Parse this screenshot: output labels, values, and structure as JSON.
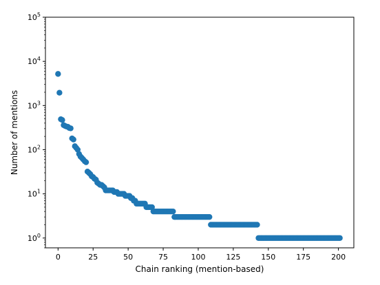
{
  "chart_data": {
    "type": "scatter",
    "title": "",
    "xlabel": "Chain ranking (mention-based)",
    "ylabel": "Number of mentions",
    "x_scale": "linear",
    "y_scale": "log",
    "xlim": [
      -9,
      211
    ],
    "ylim": [
      0.6,
      100000
    ],
    "x_ticks": [
      0,
      25,
      50,
      75,
      100,
      125,
      150,
      175,
      200
    ],
    "y_ticks": [
      1,
      10,
      100,
      1000,
      10000,
      100000
    ],
    "y_tick_labels": [
      {
        "base": "10",
        "exp": "0"
      },
      {
        "base": "10",
        "exp": "1"
      },
      {
        "base": "10",
        "exp": "2"
      },
      {
        "base": "10",
        "exp": "3"
      },
      {
        "base": "10",
        "exp": "4"
      },
      {
        "base": "10",
        "exp": "5"
      }
    ],
    "grid": false,
    "marker_color": "#1f77b4",
    "series": [
      {
        "values": [
          [
            0,
            5200
          ],
          [
            1,
            1950
          ],
          [
            2,
            490
          ],
          [
            3,
            470
          ],
          [
            4,
            360
          ],
          [
            5,
            345
          ],
          [
            6,
            335
          ],
          [
            7,
            330
          ],
          [
            8,
            310
          ],
          [
            9,
            305
          ],
          [
            10,
            180
          ],
          [
            11,
            170
          ],
          [
            12,
            120
          ],
          [
            13,
            110
          ],
          [
            14,
            100
          ],
          [
            15,
            80
          ],
          [
            16,
            70
          ],
          [
            17,
            65
          ],
          [
            18,
            60
          ],
          [
            19,
            55
          ],
          [
            20,
            52
          ],
          [
            21,
            32
          ],
          [
            22,
            30
          ],
          [
            23,
            28
          ],
          [
            24,
            25
          ],
          [
            25,
            24
          ],
          [
            26,
            22
          ],
          [
            27,
            21
          ],
          [
            28,
            18
          ],
          [
            29,
            17
          ],
          [
            30,
            16
          ],
          [
            31,
            16
          ],
          [
            32,
            15
          ],
          [
            33,
            14
          ],
          [
            34,
            12
          ],
          [
            35,
            12
          ],
          [
            36,
            12
          ],
          [
            37,
            12
          ],
          [
            38,
            12
          ],
          [
            39,
            12
          ],
          [
            40,
            11
          ],
          [
            41,
            11
          ],
          [
            42,
            11
          ],
          [
            43,
            10
          ],
          [
            44,
            10
          ],
          [
            45,
            10
          ],
          [
            46,
            10
          ],
          [
            47,
            10
          ],
          [
            48,
            9
          ],
          [
            49,
            9
          ],
          [
            50,
            9
          ],
          [
            51,
            9
          ],
          [
            52,
            8
          ],
          [
            53,
            8
          ],
          [
            54,
            7
          ],
          [
            55,
            7
          ],
          [
            56,
            6
          ],
          [
            57,
            6
          ],
          [
            58,
            6
          ],
          [
            59,
            6
          ],
          [
            60,
            6
          ],
          [
            61,
            6
          ],
          [
            62,
            6
          ],
          [
            63,
            5
          ],
          [
            64,
            5
          ],
          [
            65,
            5
          ],
          [
            66,
            5
          ],
          [
            67,
            5
          ],
          [
            68,
            4
          ],
          [
            69,
            4
          ],
          [
            70,
            4
          ],
          [
            71,
            4
          ],
          [
            72,
            4
          ],
          [
            73,
            4
          ],
          [
            74,
            4
          ],
          [
            75,
            4
          ],
          [
            76,
            4
          ],
          [
            77,
            4
          ],
          [
            78,
            4
          ],
          [
            79,
            4
          ],
          [
            80,
            4
          ],
          [
            81,
            4
          ],
          [
            82,
            4
          ],
          [
            83,
            3
          ],
          [
            84,
            3
          ],
          [
            85,
            3
          ],
          [
            86,
            3
          ],
          [
            87,
            3
          ],
          [
            88,
            3
          ],
          [
            89,
            3
          ],
          [
            90,
            3
          ],
          [
            91,
            3
          ],
          [
            92,
            3
          ],
          [
            93,
            3
          ],
          [
            94,
            3
          ],
          [
            95,
            3
          ],
          [
            96,
            3
          ],
          [
            97,
            3
          ],
          [
            98,
            3
          ],
          [
            99,
            3
          ],
          [
            100,
            3
          ],
          [
            101,
            3
          ],
          [
            102,
            3
          ],
          [
            103,
            3
          ],
          [
            104,
            3
          ],
          [
            105,
            3
          ],
          [
            106,
            3
          ],
          [
            107,
            3
          ],
          [
            108,
            3
          ],
          [
            109,
            2
          ],
          [
            110,
            2
          ],
          [
            111,
            2
          ],
          [
            112,
            2
          ],
          [
            113,
            2
          ],
          [
            114,
            2
          ],
          [
            115,
            2
          ],
          [
            116,
            2
          ],
          [
            117,
            2
          ],
          [
            118,
            2
          ],
          [
            119,
            2
          ],
          [
            120,
            2
          ],
          [
            121,
            2
          ],
          [
            122,
            2
          ],
          [
            123,
            2
          ],
          [
            124,
            2
          ],
          [
            125,
            2
          ],
          [
            126,
            2
          ],
          [
            127,
            2
          ],
          [
            128,
            2
          ],
          [
            129,
            2
          ],
          [
            130,
            2
          ],
          [
            131,
            2
          ],
          [
            132,
            2
          ],
          [
            133,
            2
          ],
          [
            134,
            2
          ],
          [
            135,
            2
          ],
          [
            136,
            2
          ],
          [
            137,
            2
          ],
          [
            138,
            2
          ],
          [
            139,
            2
          ],
          [
            140,
            2
          ],
          [
            141,
            2
          ],
          [
            142,
            2
          ],
          [
            143,
            1
          ],
          [
            144,
            1
          ],
          [
            145,
            1
          ],
          [
            146,
            1
          ],
          [
            147,
            1
          ],
          [
            148,
            1
          ],
          [
            149,
            1
          ],
          [
            150,
            1
          ],
          [
            151,
            1
          ],
          [
            152,
            1
          ],
          [
            153,
            1
          ],
          [
            154,
            1
          ],
          [
            155,
            1
          ],
          [
            156,
            1
          ],
          [
            157,
            1
          ],
          [
            158,
            1
          ],
          [
            159,
            1
          ],
          [
            160,
            1
          ],
          [
            161,
            1
          ],
          [
            162,
            1
          ],
          [
            163,
            1
          ],
          [
            164,
            1
          ],
          [
            165,
            1
          ],
          [
            166,
            1
          ],
          [
            167,
            1
          ],
          [
            168,
            1
          ],
          [
            169,
            1
          ],
          [
            170,
            1
          ],
          [
            171,
            1
          ],
          [
            172,
            1
          ],
          [
            173,
            1
          ],
          [
            174,
            1
          ],
          [
            175,
            1
          ],
          [
            176,
            1
          ],
          [
            177,
            1
          ],
          [
            178,
            1
          ],
          [
            179,
            1
          ],
          [
            180,
            1
          ],
          [
            181,
            1
          ],
          [
            182,
            1
          ],
          [
            183,
            1
          ],
          [
            184,
            1
          ],
          [
            185,
            1
          ],
          [
            186,
            1
          ],
          [
            187,
            1
          ],
          [
            188,
            1
          ],
          [
            189,
            1
          ],
          [
            190,
            1
          ],
          [
            191,
            1
          ],
          [
            192,
            1
          ],
          [
            193,
            1
          ],
          [
            194,
            1
          ],
          [
            195,
            1
          ],
          [
            196,
            1
          ],
          [
            197,
            1
          ],
          [
            198,
            1
          ],
          [
            199,
            1
          ],
          [
            200,
            1
          ],
          [
            201,
            1
          ]
        ]
      }
    ]
  }
}
